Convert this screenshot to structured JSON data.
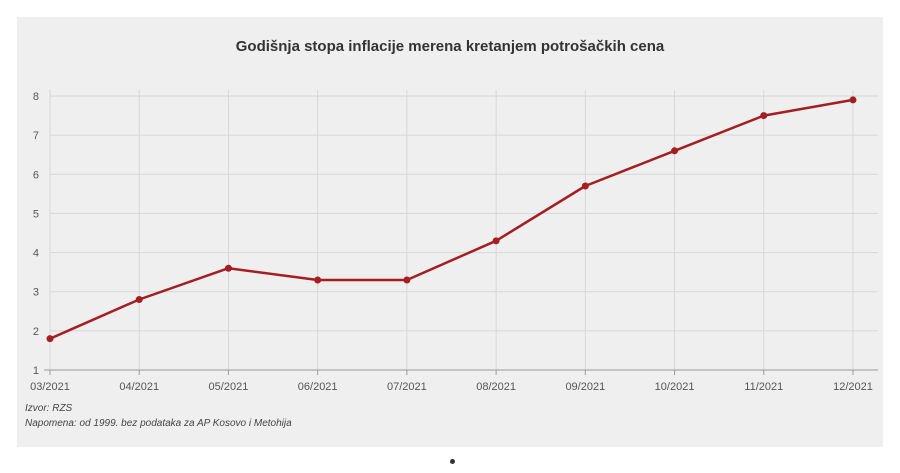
{
  "colors": {
    "line": "#a31f24",
    "background": "#efefef",
    "grid": "#d7d7d7"
  },
  "notes": {
    "source": "Izvor: RZS",
    "note": "Napomena: od 1999. bez podataka za AP Kosovo i Metohija"
  },
  "chart_data": {
    "type": "line",
    "title": "Godišnja stopa inflacije merena kretanjem potrošačkih cena",
    "xlabel": "",
    "ylabel": "",
    "categories": [
      "03/2021",
      "04/2021",
      "05/2021",
      "06/2021",
      "07/2021",
      "08/2021",
      "09/2021",
      "10/2021",
      "11/2021",
      "12/2021"
    ],
    "values": [
      1.8,
      2.8,
      3.6,
      3.3,
      3.3,
      4.3,
      5.7,
      6.6,
      7.5,
      7.9
    ],
    "ylim": [
      1,
      8
    ],
    "yticks": [
      1,
      2,
      3,
      4,
      5,
      6,
      7,
      8
    ],
    "grid": true,
    "legend": "none"
  }
}
